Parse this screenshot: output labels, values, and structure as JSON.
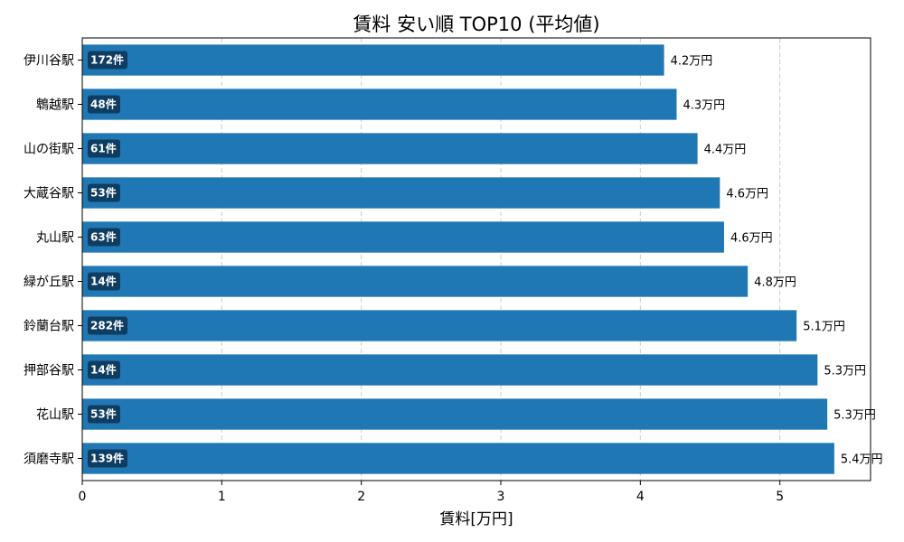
{
  "chart_data": {
    "type": "bar",
    "orientation": "horizontal",
    "title": "賃料 安い順 TOP10 (平均値)",
    "xlabel": "賃料[万円]",
    "ylabel": "",
    "xlim": [
      0,
      5.65
    ],
    "xticks": [
      "0",
      "1",
      "2",
      "3",
      "4",
      "5"
    ],
    "grid": "x-dashed",
    "bar_color": "#1f77b4",
    "badge_color": "#0f3d61",
    "categories": [
      "伊川谷駅",
      "鵯越駅",
      "山の街駅",
      "大蔵谷駅",
      "丸山駅",
      "緑が丘駅",
      "鈴蘭台駅",
      "押部谷駅",
      "花山駅",
      "須磨寺駅"
    ],
    "values": [
      4.17,
      4.26,
      4.41,
      4.57,
      4.6,
      4.77,
      5.12,
      5.27,
      5.34,
      5.39
    ],
    "value_labels": [
      "4.2万円",
      "4.3万円",
      "4.4万円",
      "4.6万円",
      "4.6万円",
      "4.8万円",
      "5.1万円",
      "5.3万円",
      "5.3万円",
      "5.4万円"
    ],
    "counts": [
      "172件",
      "48件",
      "61件",
      "53件",
      "63件",
      "14件",
      "282件",
      "14件",
      "53件",
      "139件"
    ]
  }
}
